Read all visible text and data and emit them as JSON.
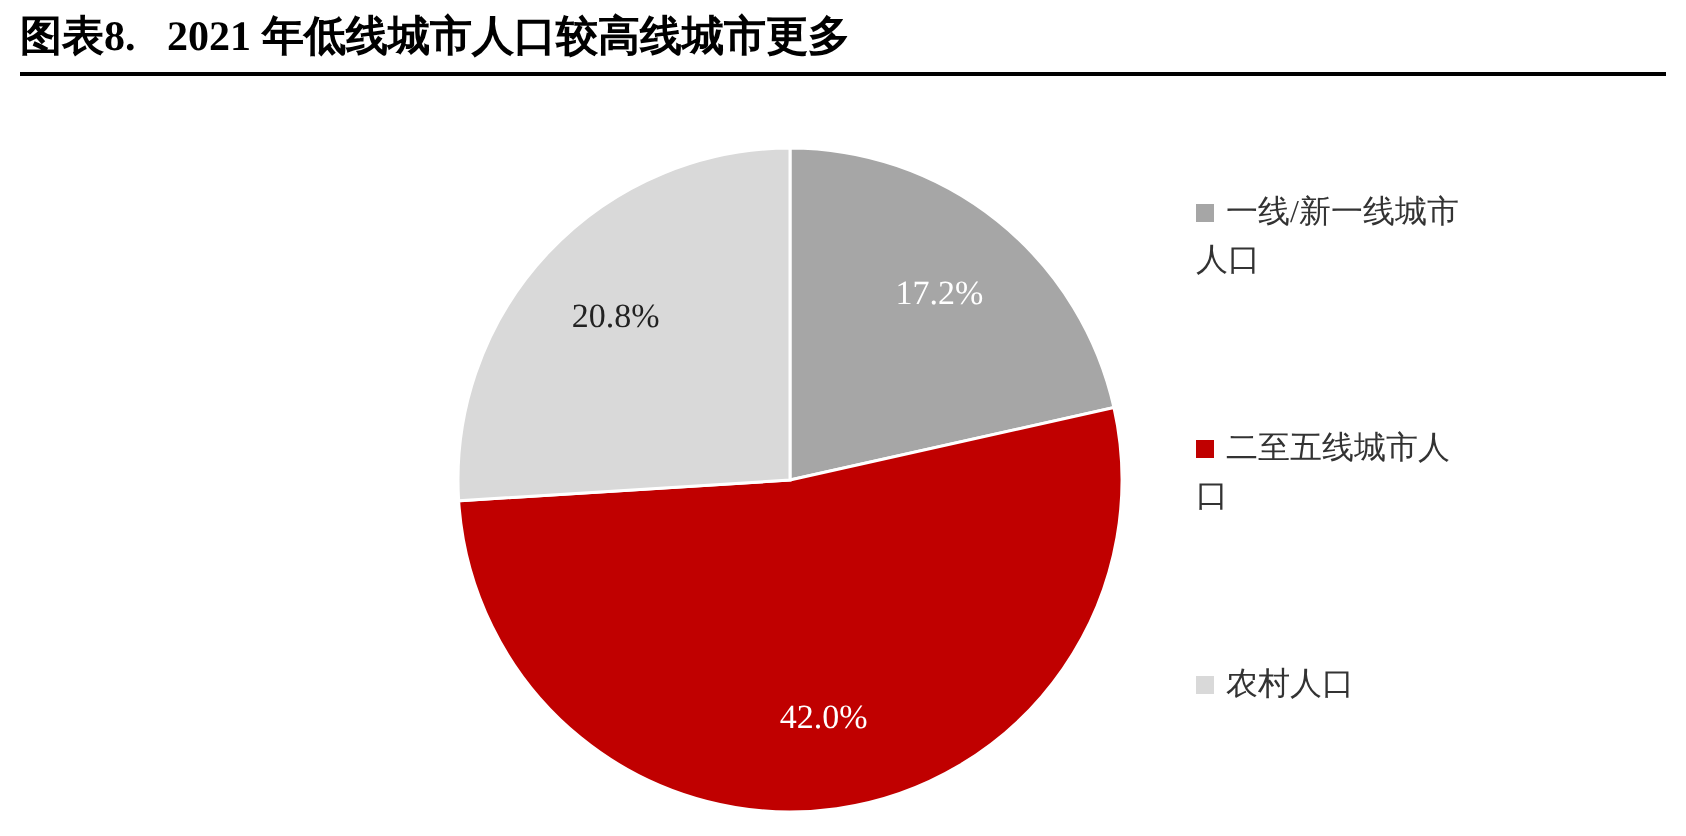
{
  "chart_data": {
    "type": "pie",
    "title": "图表8.   2021 年低线城市人口较高线城市更多",
    "categories": [
      "一线/新一线城市人口",
      "二至五线城市人口",
      "农村人口"
    ],
    "values": [
      17.2,
      42.0,
      20.8
    ],
    "value_labels": [
      "17.2%",
      "42.0%",
      "20.8%"
    ],
    "colors": [
      "#a6a6a6",
      "#c00000",
      "#d9d9d9"
    ],
    "legend": "right"
  }
}
